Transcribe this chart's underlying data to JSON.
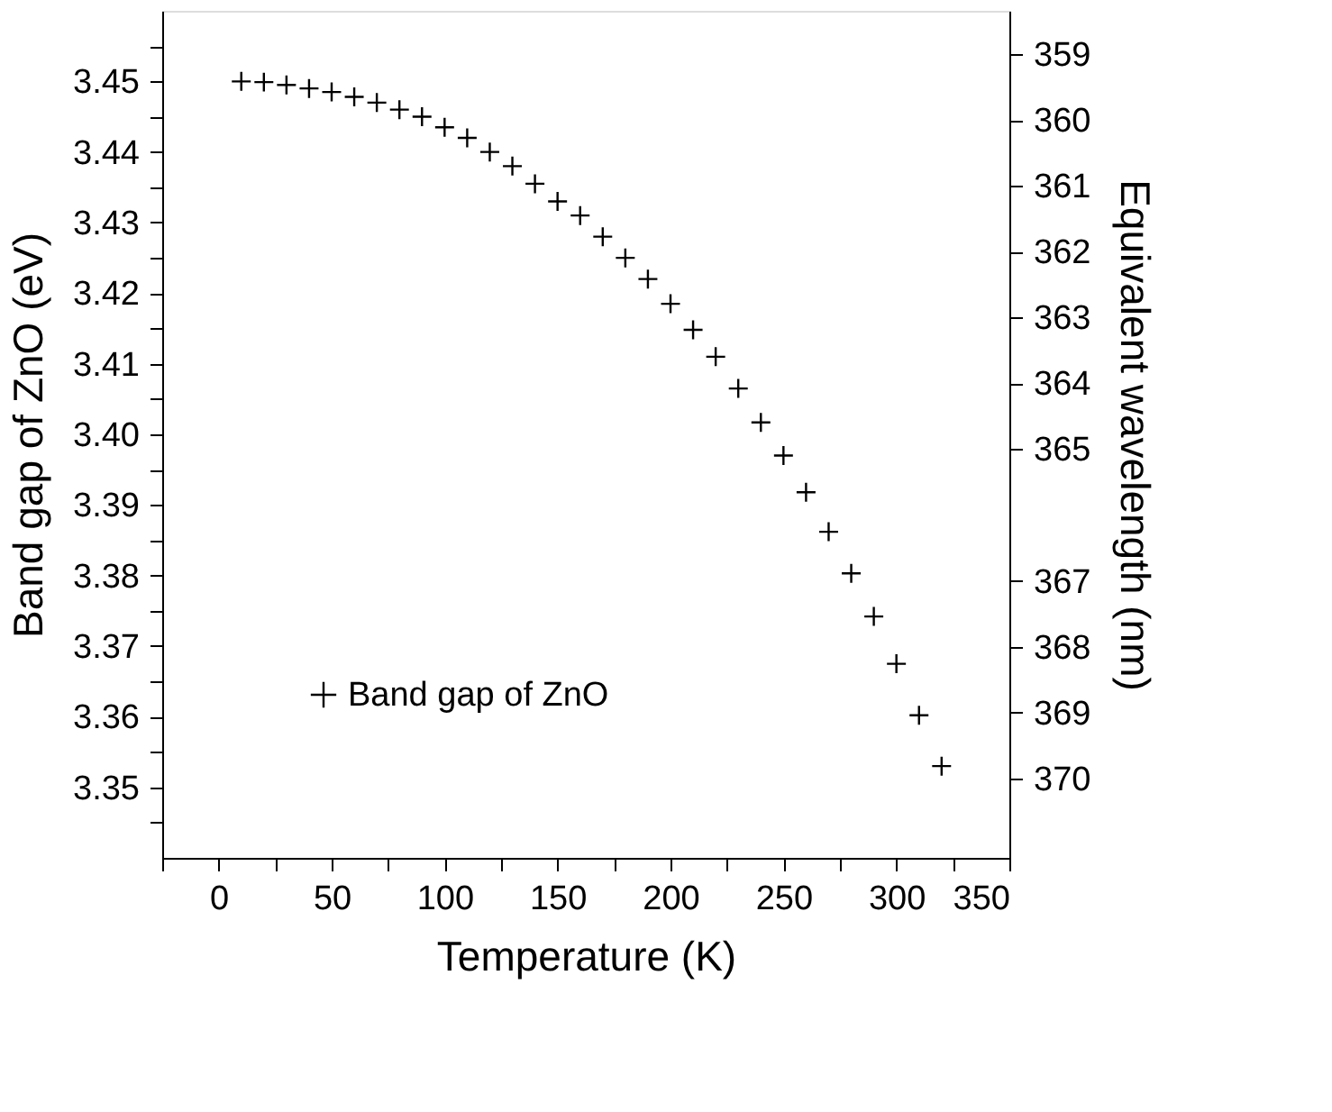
{
  "chart_data": {
    "type": "scatter",
    "xlabel": "Temperature (K)",
    "ylabel": "Band gap of ZnO (eV)",
    "y2label": "Equivalent wavelength (nm)",
    "x": [
      10,
      20,
      30,
      40,
      50,
      60,
      70,
      80,
      90,
      100,
      110,
      120,
      130,
      140,
      150,
      160,
      170,
      180,
      190,
      200,
      210,
      220,
      230,
      240,
      250,
      260,
      270,
      280,
      290,
      300,
      310,
      320
    ],
    "series": [
      {
        "name": "Band gap of ZnO",
        "color": "#000000",
        "values": [
          3.45,
          3.4499,
          3.4495,
          3.449,
          3.4485,
          3.4478,
          3.447,
          3.446,
          3.445,
          3.4435,
          3.442,
          3.44,
          3.438,
          3.4355,
          3.433,
          3.431,
          3.428,
          3.425,
          3.422,
          3.4185,
          3.4148,
          3.411,
          3.4065,
          3.4017,
          3.397,
          3.3918,
          3.3862,
          3.3803,
          3.3742,
          3.3675,
          3.3602,
          3.353
        ]
      }
    ],
    "xlim": [
      -25,
      350
    ],
    "xticks": [
      0,
      50,
      100,
      150,
      200,
      250,
      300,
      350,
      {
        "value": -25,
        "label": null
      },
      {
        "value": 25,
        "label": null
      },
      {
        "value": 75,
        "label": null
      },
      {
        "value": 125,
        "label": null
      },
      {
        "value": 175,
        "label": null
      },
      {
        "value": 225,
        "label": null
      },
      {
        "value": 275,
        "label": null
      },
      {
        "value": 325,
        "label": null
      }
    ],
    "ylim": [
      3.34,
      3.46
    ],
    "yticks": [
      3.35,
      3.36,
      3.37,
      3.38,
      3.39,
      {
        "value": 3.4,
        "label": "3.40"
      },
      3.41,
      3.42,
      3.43,
      3.44,
      3.45,
      {
        "value": 3.345,
        "label": null
      },
      {
        "value": 3.355,
        "label": null
      },
      {
        "value": 3.365,
        "label": null
      },
      {
        "value": 3.375,
        "label": null
      },
      {
        "value": 3.385,
        "label": null
      },
      {
        "value": 3.395,
        "label": null
      },
      {
        "value": 3.405,
        "label": null
      },
      {
        "value": 3.415,
        "label": null
      },
      {
        "value": 3.425,
        "label": null
      },
      {
        "value": 3.435,
        "label": null
      },
      {
        "value": 3.445,
        "label": null
      },
      {
        "value": 3.455,
        "label": null
      }
    ],
    "y2lim": [
      371.21,
      358.34
    ],
    "y2ticks": [
      359,
      360,
      361,
      362,
      363,
      364,
      365,
      367,
      368,
      369,
      370
    ],
    "marker": "cross",
    "grid": false,
    "legend": "bottom left"
  }
}
